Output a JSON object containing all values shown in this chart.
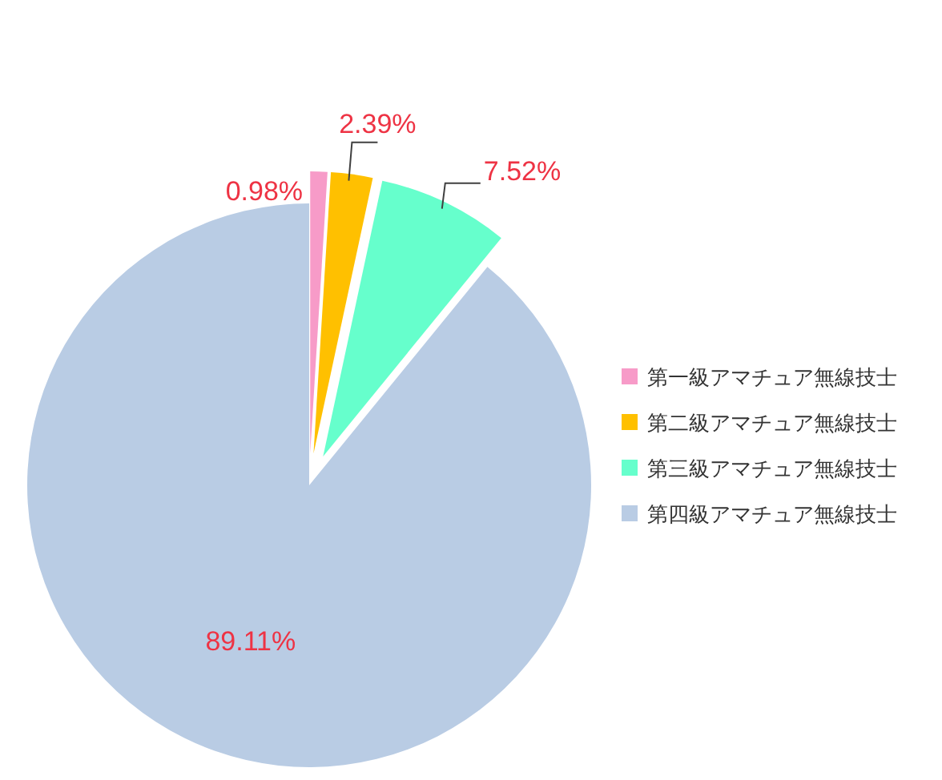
{
  "chart_data": {
    "type": "pie",
    "categories": [
      "第一級アマチュア無線技士",
      "第二級アマチュア無線技士",
      "第三級アマチュア無線技士",
      "第四級アマチュア無線技士"
    ],
    "values": [
      0.98,
      2.39,
      7.52,
      89.11
    ],
    "colors": [
      "#f79bc8",
      "#ffc000",
      "#66ffcc",
      "#b9cce4"
    ],
    "value_labels": [
      "0.98%",
      "2.39%",
      "7.52%",
      "89.11%"
    ],
    "legend": "right"
  }
}
